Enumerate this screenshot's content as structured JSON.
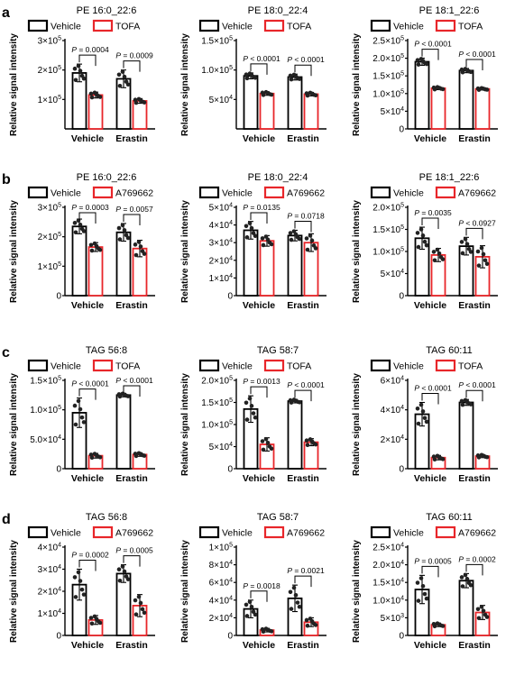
{
  "colors": {
    "vehicle": "#000000",
    "treated": "#e8262a",
    "dot": "#222222"
  },
  "x_categories": [
    "Vehicle",
    "Erastin"
  ],
  "ylabel": "Relative signal intensity",
  "panels": [
    {
      "letter": "a",
      "legend": [
        "Vehicle",
        "TOFA"
      ]
    },
    {
      "letter": "b",
      "legend": [
        "Vehicle",
        "A769662"
      ]
    },
    {
      "letter": "c",
      "legend": [
        "Vehicle",
        "TOFA"
      ]
    },
    {
      "letter": "d",
      "legend": [
        "Vehicle",
        "A769662"
      ]
    }
  ],
  "chart_data": [
    {
      "type": "bar",
      "title": "PE 16:0_22:6",
      "categories": [
        "Vehicle",
        "Erastin"
      ],
      "ylabel": "Relative signal intensity",
      "ylim": [
        0,
        300000
      ],
      "yticks": [
        {
          "v": 100000,
          "m": "1",
          "e": "5"
        },
        {
          "v": 200000,
          "m": "2",
          "e": "5"
        },
        {
          "v": 300000,
          "m": "3",
          "e": "5"
        }
      ],
      "series": [
        {
          "name": "Vehicle",
          "values": [
            190000,
            170000
          ],
          "err": [
            30000,
            30000
          ]
        },
        {
          "name": "TOFA",
          "values": [
            115000,
            95000
          ],
          "err": [
            10000,
            8000
          ]
        }
      ],
      "pvalues": [
        "P = 0.0004",
        "P = 0.0009"
      ]
    },
    {
      "type": "bar",
      "title": "PE 18:0_22:4",
      "categories": [
        "Vehicle",
        "Erastin"
      ],
      "ylabel": "Relative signal intensity",
      "ylim": [
        0,
        150000
      ],
      "yticks": [
        {
          "v": 50000,
          "m": "5",
          "e": "4"
        },
        {
          "v": 100000,
          "m": "1.0",
          "e": "5"
        },
        {
          "v": 150000,
          "m": "1.5",
          "e": "5"
        }
      ],
      "series": [
        {
          "name": "Vehicle",
          "values": [
            90000,
            88000
          ],
          "err": [
            5000,
            5000
          ]
        },
        {
          "name": "TOFA",
          "values": [
            60000,
            59000
          ],
          "err": [
            3000,
            3000
          ]
        }
      ],
      "pvalues": [
        "P < 0.0001",
        "P < 0.0001"
      ]
    },
    {
      "type": "bar",
      "title": "PE 18:1_22:6",
      "categories": [
        "Vehicle",
        "Erastin"
      ],
      "ylabel": "Relative signal intensity",
      "ylim": [
        0,
        250000
      ],
      "yticks": [
        {
          "v": 0,
          "m": "0",
          "e": ""
        },
        {
          "v": 50000,
          "m": "5",
          "e": "4"
        },
        {
          "v": 100000,
          "m": "1.0",
          "e": "5"
        },
        {
          "v": 150000,
          "m": "1.5",
          "e": "5"
        },
        {
          "v": 200000,
          "m": "2.0",
          "e": "5"
        },
        {
          "v": 250000,
          "m": "2.5",
          "e": "5"
        }
      ],
      "series": [
        {
          "name": "Vehicle",
          "values": [
            190000,
            165000
          ],
          "err": [
            10000,
            6000
          ]
        },
        {
          "name": "TOFA",
          "values": [
            115000,
            113000
          ],
          "err": [
            4000,
            3000
          ]
        }
      ],
      "pvalues": [
        "P < 0.0001",
        "P < 0.0001"
      ]
    },
    {
      "type": "bar",
      "title": "PE 16:0_22:6",
      "categories": [
        "Vehicle",
        "Erastin"
      ],
      "ylabel": "Relative signal intensity",
      "ylim": [
        0,
        300000
      ],
      "yticks": [
        {
          "v": 0,
          "m": "0",
          "e": ""
        },
        {
          "v": 100000,
          "m": "1",
          "e": "5"
        },
        {
          "v": 200000,
          "m": "2",
          "e": "5"
        },
        {
          "v": 300000,
          "m": "3",
          "e": "5"
        }
      ],
      "series": [
        {
          "name": "Vehicle",
          "values": [
            235000,
            215000
          ],
          "err": [
            25000,
            30000
          ]
        },
        {
          "name": "A769662",
          "values": [
            165000,
            160000
          ],
          "err": [
            15000,
            28000
          ]
        }
      ],
      "pvalues": [
        "P = 0.0003",
        "P = 0.0057"
      ]
    },
    {
      "type": "bar",
      "title": "PE 18:0_22:4",
      "categories": [
        "Vehicle",
        "Erastin"
      ],
      "ylabel": "Relative signal intensity",
      "ylim": [
        0,
        50000
      ],
      "yticks": [
        {
          "v": 0,
          "m": "0",
          "e": ""
        },
        {
          "v": 10000,
          "m": "1",
          "e": "4"
        },
        {
          "v": 20000,
          "m": "2",
          "e": "4"
        },
        {
          "v": 30000,
          "m": "3",
          "e": "4"
        },
        {
          "v": 40000,
          "m": "4",
          "e": "4"
        },
        {
          "v": 50000,
          "m": "5",
          "e": "4"
        }
      ],
      "series": [
        {
          "name": "Vehicle",
          "values": [
            37000,
            34000
          ],
          "err": [
            5000,
            3000
          ]
        },
        {
          "name": "A769662",
          "values": [
            31000,
            30000
          ],
          "err": [
            3000,
            5000
          ]
        }
      ],
      "pvalues": [
        "P = 0.0135",
        "P = 0.0718"
      ]
    },
    {
      "type": "bar",
      "title": "PE 18:1_22:6",
      "categories": [
        "Vehicle",
        "Erastin"
      ],
      "ylabel": "Relative signal intensity",
      "ylim": [
        0,
        200000
      ],
      "yticks": [
        {
          "v": 0,
          "m": "0",
          "e": ""
        },
        {
          "v": 50000,
          "m": "5",
          "e": "4"
        },
        {
          "v": 100000,
          "m": "1.0",
          "e": "5"
        },
        {
          "v": 150000,
          "m": "1.5",
          "e": "5"
        },
        {
          "v": 200000,
          "m": "2.0",
          "e": "5"
        }
      ],
      "series": [
        {
          "name": "Vehicle",
          "values": [
            130000,
            112000
          ],
          "err": [
            25000,
            20000
          ]
        },
        {
          "name": "A769662",
          "values": [
            92000,
            88000
          ],
          "err": [
            15000,
            25000
          ]
        }
      ],
      "pvalues": [
        "P = 0.0035",
        "P < 0.0927"
      ]
    },
    {
      "type": "bar",
      "title": "TAG 56:8",
      "categories": [
        "Vehicle",
        "Erastin"
      ],
      "ylabel": "Relative signal intensity",
      "ylim": [
        0,
        150000
      ],
      "yticks": [
        {
          "v": 0,
          "m": "0",
          "e": ""
        },
        {
          "v": 50000,
          "m": "5.0",
          "e": "4"
        },
        {
          "v": 100000,
          "m": "1.0",
          "e": "5"
        },
        {
          "v": 150000,
          "m": "1.5",
          "e": "5"
        }
      ],
      "series": [
        {
          "name": "Vehicle",
          "values": [
            95000,
            125000
          ],
          "err": [
            25000,
            3000
          ]
        },
        {
          "name": "TOFA",
          "values": [
            22000,
            24000
          ],
          "err": [
            4000,
            3000
          ]
        }
      ],
      "pvalues": [
        "P < 0.0001",
        "P < 0.0001"
      ]
    },
    {
      "type": "bar",
      "title": "TAG 58:7",
      "categories": [
        "Vehicle",
        "Erastin"
      ],
      "ylabel": "Relative signal intensity",
      "ylim": [
        0,
        200000
      ],
      "yticks": [
        {
          "v": 0,
          "m": "0",
          "e": ""
        },
        {
          "v": 50000,
          "m": "5",
          "e": "4"
        },
        {
          "v": 100000,
          "m": "1.0",
          "e": "5"
        },
        {
          "v": 150000,
          "m": "1.5",
          "e": "5"
        },
        {
          "v": 200000,
          "m": "2.0",
          "e": "5"
        }
      ],
      "series": [
        {
          "name": "Vehicle",
          "values": [
            135000,
            153000
          ],
          "err": [
            30000,
            4000
          ]
        },
        {
          "name": "TOFA",
          "values": [
            55000,
            60000
          ],
          "err": [
            15000,
            8000
          ]
        }
      ],
      "pvalues": [
        "P = 0.0013",
        "P < 0.0001"
      ]
    },
    {
      "type": "bar",
      "title": "TAG 60:11",
      "categories": [
        "Vehicle",
        "Erastin"
      ],
      "ylabel": "Relative signal intensity",
      "ylim": [
        0,
        60000
      ],
      "yticks": [
        {
          "v": 0,
          "m": "0",
          "e": ""
        },
        {
          "v": 20000,
          "m": "2",
          "e": "4"
        },
        {
          "v": 40000,
          "m": "4",
          "e": "4"
        },
        {
          "v": 60000,
          "m": "6",
          "e": "4"
        }
      ],
      "series": [
        {
          "name": "Vehicle",
          "values": [
            37000,
            45000
          ],
          "err": [
            8000,
            2000
          ]
        },
        {
          "name": "TOFA",
          "values": [
            7500,
            8500
          ],
          "err": [
            1500,
            1000
          ]
        }
      ],
      "pvalues": [
        "P < 0.0001",
        "P < 0.0001"
      ]
    },
    {
      "type": "bar",
      "title": "TAG 56:8",
      "categories": [
        "Vehicle",
        "Erastin"
      ],
      "ylabel": "Relative signal intensity",
      "ylim": [
        0,
        40000
      ],
      "yticks": [
        {
          "v": 0,
          "m": "0",
          "e": ""
        },
        {
          "v": 10000,
          "m": "1",
          "e": "4"
        },
        {
          "v": 20000,
          "m": "2",
          "e": "4"
        },
        {
          "v": 30000,
          "m": "3",
          "e": "4"
        },
        {
          "v": 40000,
          "m": "4",
          "e": "4"
        }
      ],
      "series": [
        {
          "name": "Vehicle",
          "values": [
            23000,
            28000
          ],
          "err": [
            7000,
            4000
          ]
        },
        {
          "name": "A769662",
          "values": [
            7000,
            13500
          ],
          "err": [
            2000,
            5000
          ]
        }
      ],
      "pvalues": [
        "P = 0.0002",
        "P = 0.0005"
      ]
    },
    {
      "type": "bar",
      "title": "TAG 58:7",
      "categories": [
        "Vehicle",
        "Erastin"
      ],
      "ylabel": "Relative signal intensity",
      "ylim": [
        0,
        100000
      ],
      "yticks": [
        {
          "v": 0,
          "m": "0",
          "e": ""
        },
        {
          "v": 20000,
          "m": "2",
          "e": "4"
        },
        {
          "v": 40000,
          "m": "4",
          "e": "4"
        },
        {
          "v": 60000,
          "m": "6",
          "e": "4"
        },
        {
          "v": 80000,
          "m": "8",
          "e": "4"
        },
        {
          "v": 100000,
          "m": "1",
          "e": "5"
        }
      ],
      "series": [
        {
          "name": "Vehicle",
          "values": [
            30000,
            42000
          ],
          "err": [
            10000,
            15000
          ]
        },
        {
          "name": "A769662",
          "values": [
            6000,
            15000
          ],
          "err": [
            2000,
            5000
          ]
        }
      ],
      "pvalues": [
        "P = 0.0018",
        "P = 0.0021"
      ]
    },
    {
      "type": "bar",
      "title": "TAG 60:11",
      "categories": [
        "Vehicle",
        "Erastin"
      ],
      "ylabel": "Relative signal intensity",
      "ylim": [
        0,
        25000
      ],
      "yticks": [
        {
          "v": 0,
          "m": "0",
          "e": ""
        },
        {
          "v": 5000,
          "m": "5",
          "e": "3"
        },
        {
          "v": 10000,
          "m": "1.0",
          "e": "4"
        },
        {
          "v": 15000,
          "m": "1.5",
          "e": "4"
        },
        {
          "v": 20000,
          "m": "2.0",
          "e": "4"
        },
        {
          "v": 25000,
          "m": "2.5",
          "e": "4"
        }
      ],
      "series": [
        {
          "name": "Vehicle",
          "values": [
            13000,
            15500
          ],
          "err": [
            4000,
            2000
          ]
        },
        {
          "name": "A769662",
          "values": [
            3000,
            6500
          ],
          "err": [
            500,
            2000
          ]
        }
      ],
      "pvalues": [
        "P = 0.0005",
        "P = 0.0002"
      ]
    }
  ]
}
